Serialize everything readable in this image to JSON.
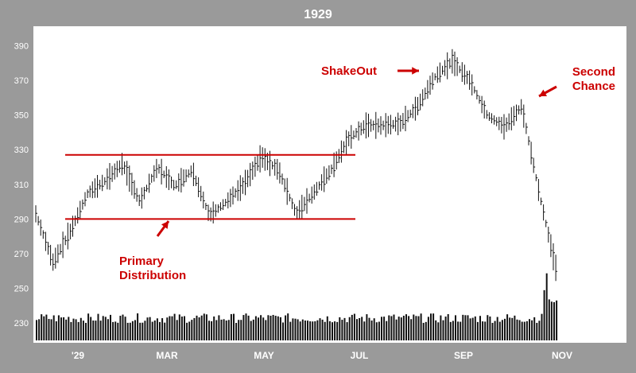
{
  "chart_data": {
    "type": "ohlc_with_volume",
    "title": "1929",
    "x_ticks": [
      "'29",
      "MAR",
      "MAY",
      "JUL",
      "SEP",
      "NOV"
    ],
    "y_ticks": [
      230,
      250,
      270,
      290,
      310,
      330,
      350,
      370,
      390
    ],
    "ylim": [
      220,
      398
    ],
    "grid": false,
    "range_lines": [
      {
        "name": "upper",
        "start": "Jan",
        "end": "Jul",
        "value": 327
      },
      {
        "name": "lower",
        "start": "Jan",
        "end": "Jul",
        "value": 290
      }
    ],
    "annotations": [
      {
        "text_lines": [
          "ShakeOut"
        ],
        "near": "Aug 1929",
        "arrow": "right"
      },
      {
        "text_lines": [
          "Second",
          "Chance"
        ],
        "near": "late Oct 1929",
        "arrow": "down-left"
      },
      {
        "text_lines": [
          "Primary",
          "Distribution"
        ],
        "near": "Feb 1929",
        "arrow": "up-right"
      }
    ],
    "price_path": [
      {
        "period": "early Jan",
        "value": 293
      },
      {
        "period": "mid Jan",
        "value": 265
      },
      {
        "period": "late Jan",
        "value": 283
      },
      {
        "period": "early Feb",
        "value": 305
      },
      {
        "period": "mid Feb",
        "value": 312
      },
      {
        "period": "late Feb",
        "value": 322
      },
      {
        "period": "early Mar",
        "value": 300
      },
      {
        "period": "mid Mar",
        "value": 320
      },
      {
        "period": "late Mar",
        "value": 309
      },
      {
        "period": "early Apr",
        "value": 318
      },
      {
        "period": "mid Apr",
        "value": 292
      },
      {
        "period": "late Apr",
        "value": 300
      },
      {
        "period": "early May",
        "value": 310
      },
      {
        "period": "mid May",
        "value": 326
      },
      {
        "period": "late May",
        "value": 318
      },
      {
        "period": "early Jun",
        "value": 293
      },
      {
        "period": "mid Jun",
        "value": 305
      },
      {
        "period": "late Jun",
        "value": 318
      },
      {
        "period": "early Jul",
        "value": 336
      },
      {
        "period": "mid Jul",
        "value": 344
      },
      {
        "period": "late Jul",
        "value": 344
      },
      {
        "period": "early Aug",
        "value": 345
      },
      {
        "period": "mid Aug",
        "value": 355
      },
      {
        "period": "late Aug",
        "value": 372
      },
      {
        "period": "early Sep",
        "value": 381
      },
      {
        "period": "mid Sep",
        "value": 370
      },
      {
        "period": "late Sep",
        "value": 350
      },
      {
        "period": "early Oct",
        "value": 343
      },
      {
        "period": "mid Oct",
        "value": 355
      },
      {
        "period": "late Oct",
        "value": 305
      },
      {
        "period": "early Nov",
        "value": 260
      }
    ],
    "volume_note": "volume bars along bottom, spike in late Oct"
  },
  "colors": {
    "background": "#9a9a9a",
    "plot_bg": "#ffffff",
    "bars": "#111111",
    "annotation": "#cc0000",
    "axis_text": "#ffffff"
  }
}
